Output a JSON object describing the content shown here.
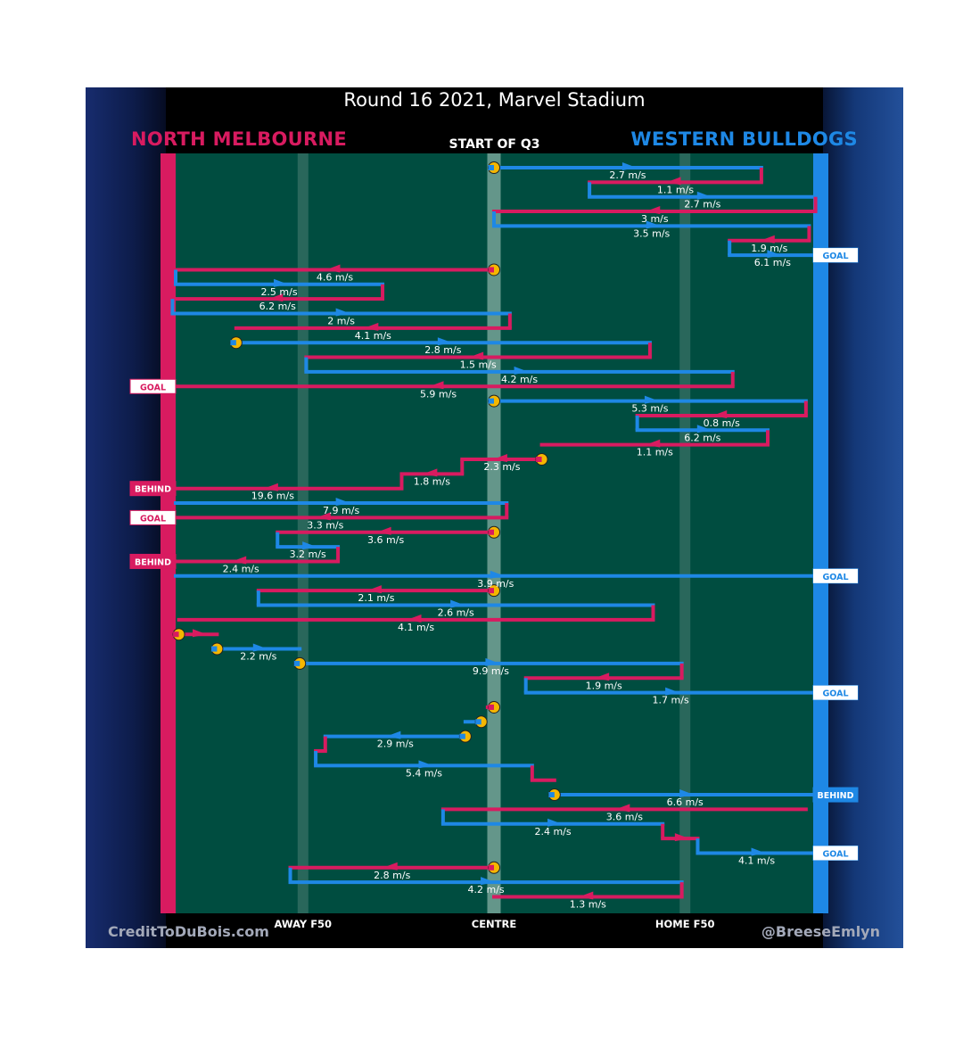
{
  "header": {
    "title": "Round 16 2021, Marvel Stadium",
    "home_team": "NORTH MELBOURNE",
    "away_team": "WESTERN BULLDOGS",
    "period": "START OF Q3"
  },
  "footer": {
    "credit_left": "CreditToDuBois.com",
    "credit_right": "@BreeseEmlyn"
  },
  "colors": {
    "home": "#d81b60",
    "away": "#1e88e5",
    "field": "#004d40",
    "centre_strip": "#6f9e92",
    "f50_strip": "#2e6a5e",
    "possession_start_marker": "#f5b700"
  },
  "chart_data": {
    "type": "line",
    "title": "Round 16 2021, Marvel Stadium",
    "x_axis": {
      "range": [
        -1,
        1
      ],
      "tick_positions": [
        -0.6,
        0,
        0.6
      ],
      "tick_labels": [
        "AWAY F50",
        "CENTRE",
        "HOME F50"
      ]
    },
    "teams": [
      {
        "name": "NORTH MELBOURNE",
        "attacks": "left"
      },
      {
        "name": "WESTERN BULLDOGS",
        "attacks": "right"
      }
    ],
    "start_marker_label": "START OF Q3",
    "chains": [
      {
        "start": true,
        "segments": [
          {
            "team": "away",
            "x_from": 0,
            "x_to": 0.84,
            "speed_label": "2.7 m/s"
          },
          {
            "team": "home",
            "x_from": 0.84,
            "x_to": 0.3,
            "speed_label": "1.1 m/s"
          },
          {
            "team": "away",
            "x_from": 0.3,
            "x_to": 1.01,
            "speed_label": "2.7 m/s"
          },
          {
            "team": "home",
            "x_from": 1.01,
            "x_to": 0,
            "speed_label": "3 m/s"
          },
          {
            "team": "away",
            "x_from": 0,
            "x_to": 0.99,
            "speed_label": "3.5 m/s"
          },
          {
            "team": "home",
            "x_from": 0.99,
            "x_to": 0.74,
            "speed_label": "1.9 m/s"
          },
          {
            "team": "away",
            "x_from": 0.74,
            "x_to": 1.01,
            "speed_label": "6.1 m/s"
          }
        ],
        "outcome": {
          "team": "away",
          "label": "GOAL"
        }
      },
      {
        "start": true,
        "segments": [
          {
            "team": "home",
            "x_from": 0,
            "x_to": -1.0,
            "speed_label": "4.6 m/s"
          },
          {
            "team": "away",
            "x_from": -1.0,
            "x_to": -0.35,
            "speed_label": "2.5 m/s"
          },
          {
            "team": "home",
            "x_from": -0.35,
            "x_to": -1.01,
            "speed_label": "6.2 m/s"
          },
          {
            "team": "away",
            "x_from": -1.01,
            "x_to": 0.05,
            "speed_label": "2 m/s"
          },
          {
            "team": "home",
            "x_from": 0.05,
            "x_to": -0.81,
            "speed_label": "4.1 m/s"
          }
        ]
      },
      {
        "start": true,
        "segments": [
          {
            "team": "away",
            "x_from": -0.81,
            "x_to": 0.49,
            "speed_label": "2.8 m/s"
          },
          {
            "team": "home",
            "x_from": 0.49,
            "x_to": -0.59,
            "speed_label": "1.5 m/s"
          },
          {
            "team": "away",
            "x_from": -0.59,
            "x_to": 0.75,
            "speed_label": "4.2 m/s"
          },
          {
            "team": "home",
            "x_from": 0.75,
            "x_to": -1.1,
            "speed_label": "5.9 m/s"
          }
        ],
        "outcome": {
          "team": "home",
          "label": "GOAL"
        }
      },
      {
        "start": true,
        "segments": [
          {
            "team": "away",
            "x_from": 0,
            "x_to": 0.98,
            "speed_label": "5.3 m/s"
          },
          {
            "team": "home",
            "x_from": 0.98,
            "x_to": 0.45,
            "speed_label": "0.8 m/s"
          },
          {
            "team": "away",
            "x_from": 0.45,
            "x_to": 0.86,
            "speed_label": "6.2 m/s"
          },
          {
            "team": "home",
            "x_from": 0.86,
            "x_to": 0.15,
            "speed_label": "1.1 m/s"
          }
        ]
      },
      {
        "start": true,
        "segments": [
          {
            "team": "home",
            "x_from": 0.15,
            "x_to": -0.1,
            "speed_label": "2.3 m/s"
          },
          {
            "team": "home",
            "x_from": -0.1,
            "x_to": -0.29,
            "speed_label": "1.8 m/s"
          },
          {
            "team": "home",
            "x_from": -0.29,
            "x_to": -1.1,
            "speed_label": "19.6 m/s"
          }
        ],
        "outcome": {
          "team": "home",
          "label": "BEHIND"
        }
      },
      {
        "start": false,
        "segments": [
          {
            "team": "away",
            "x_from": -1.0,
            "x_to": 0.04,
            "speed_label": "7.9 m/s"
          },
          {
            "team": "home",
            "x_from": 0.04,
            "x_to": -1.1,
            "speed_label": "3.3 m/s"
          }
        ],
        "outcome": {
          "team": "home",
          "label": "GOAL"
        }
      },
      {
        "start": true,
        "segments": [
          {
            "team": "home",
            "x_from": 0,
            "x_to": -0.68,
            "speed_label": "3.6 m/s"
          },
          {
            "team": "away",
            "x_from": -0.68,
            "x_to": -0.49,
            "speed_label": "3.2 m/s"
          },
          {
            "team": "home",
            "x_from": -0.49,
            "x_to": -1.1,
            "speed_label": "2.4 m/s"
          }
        ],
        "outcome": {
          "team": "home",
          "label": "BEHIND"
        }
      },
      {
        "start": false,
        "segments": [
          {
            "team": "away",
            "x_from": -1.0,
            "x_to": 1.01,
            "speed_label": "3.9 m/s"
          }
        ],
        "outcome": {
          "team": "away",
          "label": "GOAL"
        }
      },
      {
        "start": true,
        "segments": [
          {
            "team": "home",
            "x_from": 0,
            "x_to": -0.74,
            "speed_label": "2.1 m/s"
          },
          {
            "team": "away",
            "x_from": -0.74,
            "x_to": 0.5,
            "speed_label": "2.6 m/s"
          },
          {
            "team": "home",
            "x_from": 0.5,
            "x_to": -0.99,
            "speed_label": "4.1 m/s"
          }
        ]
      },
      {
        "start": true,
        "segments": [
          {
            "team": "home",
            "x_from": -0.99,
            "x_to": -0.87,
            "speed_label": ""
          }
        ]
      },
      {
        "start": true,
        "segments": [
          {
            "team": "away",
            "x_from": -0.87,
            "x_to": -0.61,
            "speed_label": "2.2 m/s"
          }
        ]
      },
      {
        "start": true,
        "segments": [
          {
            "team": "away",
            "x_from": -0.61,
            "x_to": 0.59,
            "speed_label": "9.9 m/s"
          },
          {
            "team": "home",
            "x_from": 0.59,
            "x_to": 0.1,
            "speed_label": "1.9 m/s"
          },
          {
            "team": "away",
            "x_from": 0.1,
            "x_to": 1.01,
            "speed_label": "1.7 m/s"
          }
        ],
        "outcome": {
          "team": "away",
          "label": "GOAL"
        }
      },
      {
        "start": true,
        "segments": [
          {
            "team": "home",
            "x_from": 0,
            "x_to": -0.02,
            "speed_label": ""
          }
        ]
      },
      {
        "start": true,
        "segments": [
          {
            "team": "away",
            "x_from": -0.04,
            "x_to": -0.09,
            "speed_label": ""
          }
        ]
      },
      {
        "start": true,
        "segments": [
          {
            "team": "away",
            "x_from": -0.09,
            "x_to": -0.53,
            "speed_label": "2.9 m/s"
          },
          {
            "team": "home",
            "x_from": -0.53,
            "x_to": -0.56,
            "speed_label": ""
          },
          {
            "team": "away",
            "x_from": -0.56,
            "x_to": 0.12,
            "speed_label": "5.4 m/s"
          },
          {
            "team": "home",
            "x_from": 0.12,
            "x_to": 0.19,
            "speed_label": ""
          }
        ]
      },
      {
        "start": true,
        "segments": [
          {
            "team": "away",
            "x_from": 0.19,
            "x_to": 1.01,
            "speed_label": "6.6 m/s"
          }
        ],
        "outcome": {
          "team": "away",
          "label": "BEHIND"
        }
      },
      {
        "start": false,
        "segments": [
          {
            "team": "home",
            "x_from": 0.98,
            "x_to": -0.16,
            "speed_label": "3.6 m/s"
          },
          {
            "team": "away",
            "x_from": -0.16,
            "x_to": 0.53,
            "speed_label": "2.4 m/s"
          },
          {
            "team": "home",
            "x_from": 0.53,
            "x_to": 0.64,
            "speed_label": ""
          },
          {
            "team": "away",
            "x_from": 0.64,
            "x_to": 1.01,
            "speed_label": "4.1 m/s"
          }
        ],
        "outcome": {
          "team": "away",
          "label": "GOAL"
        }
      },
      {
        "start": true,
        "segments": [
          {
            "team": "home",
            "x_from": 0,
            "x_to": -0.64,
            "speed_label": "2.8 m/s"
          },
          {
            "team": "away",
            "x_from": -0.64,
            "x_to": 0.59,
            "speed_label": "4.2 m/s"
          },
          {
            "team": "home",
            "x_from": 0.59,
            "x_to": 0,
            "speed_label": "1.3 m/s"
          }
        ]
      }
    ]
  }
}
